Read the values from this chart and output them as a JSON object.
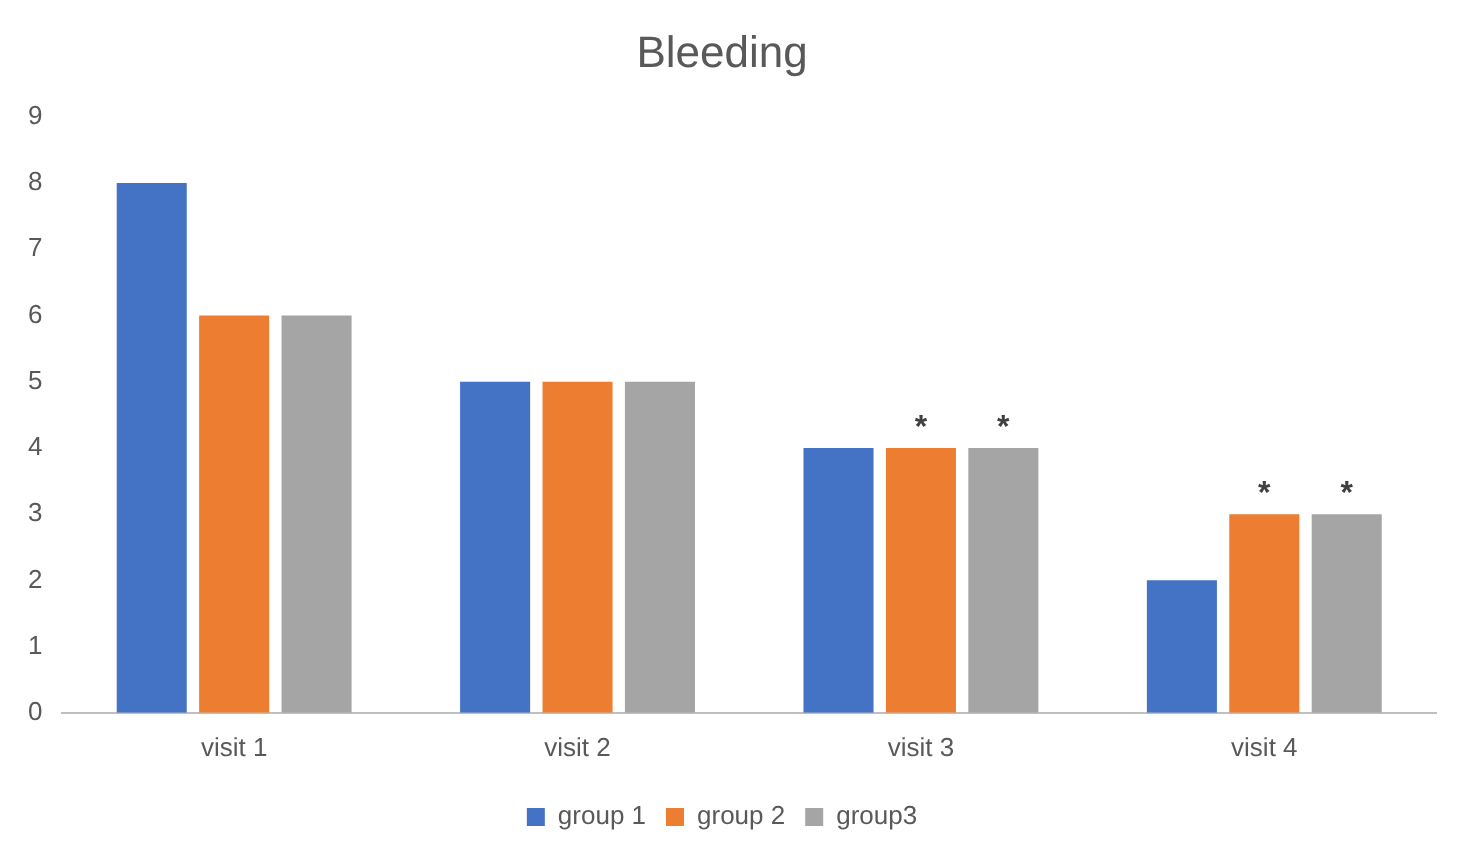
{
  "chart_data": {
    "type": "bar",
    "title": "Bleeding",
    "categories": [
      "visit 1",
      "visit 2",
      "visit 3",
      "visit 4"
    ],
    "series": [
      {
        "name": "group 1",
        "color": "#4472c4",
        "values": [
          8,
          5,
          4,
          2
        ]
      },
      {
        "name": "group 2",
        "color": "#ed7d31",
        "values": [
          6,
          5,
          4,
          3
        ],
        "value_labels": [
          null,
          null,
          "*",
          "*"
        ]
      },
      {
        "name": "group3",
        "color": "#a5a5a5",
        "values": [
          6,
          5,
          4,
          3
        ],
        "value_labels": [
          null,
          null,
          "*",
          "*"
        ]
      }
    ],
    "ylim": [
      0,
      9
    ],
    "yticks": [
      0,
      1,
      2,
      3,
      4,
      5,
      6,
      7,
      8,
      9
    ],
    "grid": false,
    "legend": "bottom"
  }
}
